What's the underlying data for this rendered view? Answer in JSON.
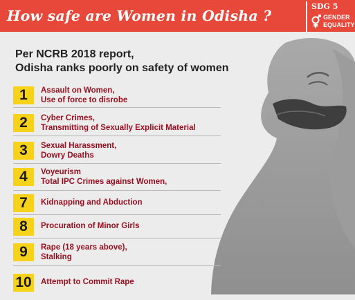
{
  "header": {
    "title": "How safe are Women in Odisha ?",
    "sdg_number": "SDG 5",
    "sdg_goal": "GENDER\nEQUALITY",
    "sdg_icon": "gender-equality-icon",
    "colors": {
      "banner": "#e8483a",
      "badge": "#f7d21a",
      "label": "#9a1020"
    }
  },
  "intro": {
    "line1": "Per NCRB 2018 report,",
    "line2": "Odisha ranks poorly on safety of women"
  },
  "ranks": [
    {
      "rank": "1",
      "label": "Assault on Women,\nUse of force to disrobe"
    },
    {
      "rank": "2",
      "label": "Cyber Crimes,\nTransmitting of Sexually Explicit Material"
    },
    {
      "rank": "3",
      "label": "Sexual Harassment,\nDowry Deaths"
    },
    {
      "rank": "4",
      "label": "Voyeurism\nTotal IPC Crimes against Women,"
    },
    {
      "rank": "7",
      "label": "Kidnapping and Abduction"
    },
    {
      "rank": "8",
      "label": "Procuration of Minor Girls"
    },
    {
      "rank": "9",
      "label": "Rape (18 years above),\nStalking"
    },
    {
      "rank": "10",
      "label": "Attempt to Commit Rape"
    }
  ]
}
